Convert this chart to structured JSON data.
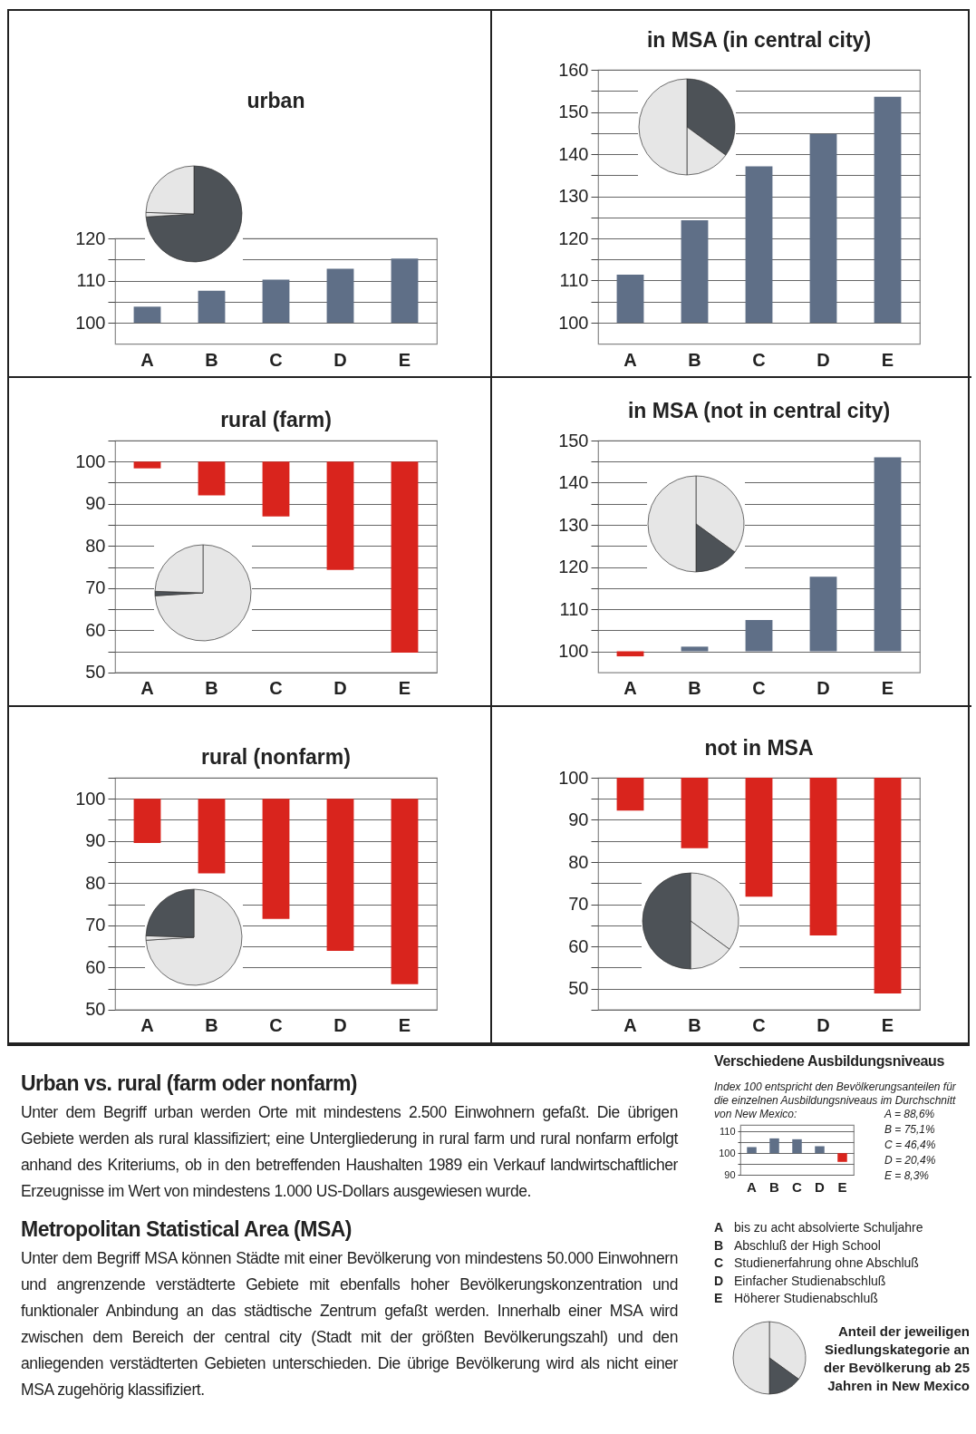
{
  "chart_data": [
    {
      "type": "bar",
      "title": "urban",
      "categories": [
        "A",
        "B",
        "C",
        "D",
        "E"
      ],
      "base": [
        100,
        100,
        100,
        100,
        100
      ],
      "values": [
        3.8,
        7.6,
        10.2,
        12.8,
        15.2
      ],
      "colors": [
        "#5f6f87",
        "#5f6f87",
        "#5f6f87",
        "#5f6f87",
        "#5f6f87"
      ],
      "ylim": [
        95,
        120
      ],
      "yticks": [
        100,
        {
          "value": 105,
          "label": null
        },
        110,
        {
          "value": 115,
          "label": null
        },
        120
      ],
      "grid": "y"
    },
    {
      "type": "pie",
      "categories": [
        null,
        null,
        null
      ],
      "values": [
        74,
        1.5,
        24.5
      ],
      "colors": [
        "#4d5257",
        "#e6e6e6",
        "#e6e6e6"
      ]
    },
    {
      "type": "bar",
      "title": "in MSA (in central city)",
      "categories": [
        "A",
        "B",
        "C",
        "D",
        "E"
      ],
      "base": [
        100,
        100,
        100,
        100,
        100
      ],
      "values": [
        11.4,
        24.3,
        37.1,
        44.8,
        53.6
      ],
      "colors": [
        "#5f6f87",
        "#5f6f87",
        "#5f6f87",
        "#5f6f87",
        "#5f6f87"
      ],
      "ylim": [
        95,
        160
      ],
      "yticks": [
        100,
        {
          "value": 105,
          "label": null
        },
        110,
        {
          "value": 115,
          "label": null
        },
        120,
        {
          "value": 125,
          "label": null
        },
        130,
        {
          "value": 135,
          "label": null
        },
        140,
        {
          "value": 145,
          "label": null
        },
        150,
        {
          "value": 155,
          "label": null
        },
        160
      ],
      "grid": "y"
    },
    {
      "type": "pie",
      "categories": [
        null,
        null,
        null
      ],
      "values": [
        35,
        15,
        50
      ],
      "colors": [
        "#4d5257",
        "#e6e6e6",
        "#e6e6e6"
      ]
    },
    {
      "type": "bar",
      "title": "rural (farm)",
      "categories": [
        "A",
        "B",
        "C",
        "D",
        "E"
      ],
      "base": [
        100,
        100,
        100,
        100,
        100
      ],
      "values": [
        -1.6,
        -8.0,
        -13.0,
        -25.7,
        -45.3
      ],
      "colors": [
        "#d9241d",
        "#d9241d",
        "#d9241d",
        "#d9241d",
        "#d9241d"
      ],
      "ylim": [
        50,
        105
      ],
      "yticks": [
        50,
        {
          "value": 55,
          "label": null
        },
        60,
        {
          "value": 65,
          "label": null
        },
        70,
        {
          "value": 75,
          "label": null
        },
        80,
        {
          "value": 85,
          "label": null
        },
        90,
        {
          "value": 95,
          "label": null
        },
        100,
        {
          "value": 105,
          "label": null
        }
      ],
      "grid": "y"
    },
    {
      "type": "pie",
      "categories": [
        null,
        null,
        null
      ],
      "values": [
        74,
        1.5,
        24.5
      ],
      "colors": [
        "#e6e6e6",
        "#4d5257",
        "#e6e6e6"
      ]
    },
    {
      "type": "bar",
      "title": "in MSA (not in central city)",
      "categories": [
        "A",
        "B",
        "C",
        "D",
        "E"
      ],
      "base": [
        100,
        100,
        100,
        100,
        100
      ],
      "values": [
        -1.2,
        1.1,
        7.4,
        17.7,
        46.0
      ],
      "colors": [
        "#d9241d",
        "#5f6f87",
        "#5f6f87",
        "#5f6f87",
        "#5f6f87"
      ],
      "ylim": [
        95,
        150
      ],
      "yticks": [
        100,
        {
          "value": 105,
          "label": null
        },
        110,
        {
          "value": 115,
          "label": null
        },
        120,
        {
          "value": 125,
          "label": null
        },
        130,
        {
          "value": 135,
          "label": null
        },
        140,
        {
          "value": 145,
          "label": null
        },
        150
      ],
      "grid": "y"
    },
    {
      "type": "pie",
      "categories": [
        null,
        null,
        null
      ],
      "values": [
        35,
        15,
        50
      ],
      "colors": [
        "#e6e6e6",
        "#4d5257",
        "#e6e6e6"
      ]
    },
    {
      "type": "bar",
      "title": "rural (nonfarm)",
      "categories": [
        "A",
        "B",
        "C",
        "D",
        "E"
      ],
      "base": [
        100,
        100,
        100,
        100,
        100
      ],
      "values": [
        -10.5,
        -17.7,
        -28.5,
        -36.1,
        -44.0
      ],
      "colors": [
        "#d9241d",
        "#d9241d",
        "#d9241d",
        "#d9241d",
        "#d9241d"
      ],
      "ylim": [
        50,
        105
      ],
      "yticks": [
        50,
        {
          "value": 55,
          "label": null
        },
        60,
        {
          "value": 65,
          "label": null
        },
        70,
        {
          "value": 75,
          "label": null
        },
        80,
        {
          "value": 85,
          "label": null
        },
        90,
        {
          "value": 95,
          "label": null
        },
        100,
        {
          "value": 105,
          "label": null
        }
      ],
      "grid": "y"
    },
    {
      "type": "pie",
      "categories": [
        null,
        null,
        null
      ],
      "values": [
        74,
        1.5,
        24.5
      ],
      "colors": [
        "#e6e6e6",
        "#e6e6e6",
        "#4d5257"
      ]
    },
    {
      "type": "bar",
      "title": "not in MSA",
      "categories": [
        "A",
        "B",
        "C",
        "D",
        "E"
      ],
      "base": [
        100,
        100,
        100,
        100,
        100
      ],
      "values": [
        -7.8,
        -16.7,
        -28.2,
        -37.4,
        -51.2
      ],
      "colors": [
        "#d9241d",
        "#d9241d",
        "#d9241d",
        "#d9241d",
        "#d9241d"
      ],
      "ylim": [
        45,
        100
      ],
      "yticks": [
        {
          "value": 45,
          "label": null
        },
        50,
        {
          "value": 55,
          "label": null
        },
        60,
        {
          "value": 65,
          "label": null
        },
        70,
        {
          "value": 75,
          "label": null
        },
        80,
        {
          "value": 85,
          "label": null
        },
        90,
        {
          "value": 95,
          "label": null
        },
        100
      ],
      "grid": "y"
    },
    {
      "type": "pie",
      "categories": [
        null,
        null,
        null
      ],
      "values": [
        35,
        15,
        50
      ],
      "colors": [
        "#e6e6e6",
        "#e6e6e6",
        "#4d5257"
      ]
    },
    {
      "type": "other",
      "title": "Urban vs. rural (farm oder nonfarm)",
      "annotations": [
        "Unter dem Begriff urban werden Orte mit mindestens 2.500 Einwohnern gefaßt. Die übrigen Gebiete werden als rural klassifiziert; eine Untergliederung in rural farm und rural nonfarm erfolgt anhand des Kriteriums, ob in den betreffenden Haushalten 1989 ein Verkauf landwirtschaftlicher Erzeugnisse im Wert von mindestens 1.000 US-Dollars ausgewiesen wurde."
      ]
    },
    {
      "type": "other",
      "title": "Metropolitan Statistical Area (MSA)",
      "annotations": [
        "Unter dem Begriff MSA können Städte mit einer Bevölkerung von mindestens 50.000 Einwohnern und angrenzende verstädterte Gebiete mit ebenfalls hoher Bevölkerungskonzentration und funktionaler Anbindung an das städtische Zentrum gefaßt werden. Innerhalb einer MSA wird zwischen dem Bereich der central city (Stadt mit der größten Bevölkerungszahl) und den anliegenden verstädterten Gebieten unterschieden. Die übrige Bevölkerung wird als nicht einer MSA zugehörig klassifiziert."
      ]
    },
    {
      "type": "bar",
      "title": "Verschiedene Ausbildungsniveaus",
      "categories": [
        "A",
        "B",
        "C",
        "D",
        "E"
      ],
      "base": [
        100,
        100,
        100,
        100,
        100
      ],
      "values": [
        2.8,
        6.8,
        6.4,
        3.2,
        -4.0
      ],
      "colors": [
        "#5f6f87",
        "#5f6f87",
        "#5f6f87",
        "#5f6f87",
        "#d9241d"
      ],
      "ylim": [
        90,
        113
      ],
      "yticks": [
        90,
        {
          "value": 95,
          "label": null
        },
        100,
        {
          "value": 105,
          "label": null
        },
        110
      ],
      "grid": "y",
      "annotations": [
        "Index 100 entspricht den Bevölkerungsanteilen für die einzelnen Ausbildungsniveaus im Durchschnitt von New Mexico:",
        "A = 88,6%",
        "B = 75,1%",
        "C = 46,4%",
        "D = 20,4%",
        "E = 8,3%"
      ]
    },
    {
      "type": "other",
      "annotations": [
        "A bis zu acht absolvierte Schuljahre",
        "B Abschluß der High School",
        "C Studienerfahrung ohne Abschluß",
        "D Einfacher Studienabschluß",
        "E Höherer Studienabschluß"
      ]
    },
    {
      "type": "pie",
      "title": "Anteil der jeweiligen Siedlungskategorie an der Bevölkerung ab 25 Jahren in New Mexico",
      "categories": [
        null,
        null,
        null
      ],
      "values": [
        35,
        15,
        50
      ],
      "colors": [
        "#e6e6e6",
        "#4d5257",
        "#e6e6e6"
      ]
    }
  ]
}
